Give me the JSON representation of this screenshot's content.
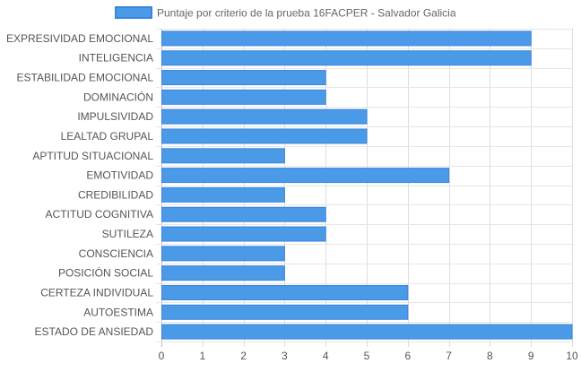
{
  "chart_data": {
    "type": "bar",
    "orientation": "horizontal",
    "legend_position": "top",
    "grid": true,
    "xlim": [
      0,
      10
    ],
    "xticks": [
      0,
      1,
      2,
      3,
      4,
      5,
      6,
      7,
      8,
      9,
      10
    ],
    "categories": [
      "EXPRESIVIDAD EMOCIONAL",
      "INTELIGENCIA",
      "ESTABILIDAD EMOCIONAL",
      "DOMINACIÓN",
      "IMPULSIVIDAD",
      "LEALTAD GRUPAL",
      "APTITUD SITUACIONAL",
      "EMOTIVIDAD",
      "CREDIBILIDAD",
      "ACTITUD COGNITIVA",
      "SUTILEZA",
      "CONSCIENCIA",
      "POSICIÓN SOCIAL",
      "CERTEZA INDIVIDUAL",
      "AUTOESTIMA",
      "ESTADO DE ANSIEDAD"
    ],
    "series": [
      {
        "name": "Puntaje por criterio de la prueba 16FACPER - Salvador Galicia",
        "color": "#4a9ae8",
        "border_color": "#3a86dc",
        "values": [
          9,
          9,
          4,
          4,
          5,
          5,
          3,
          7,
          3,
          4,
          4,
          3,
          3,
          6,
          6,
          10
        ]
      }
    ]
  }
}
